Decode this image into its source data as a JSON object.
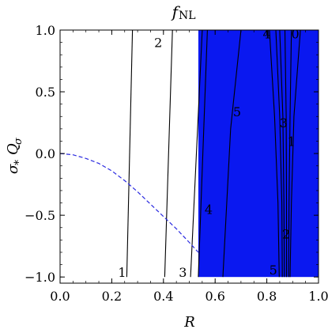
{
  "chart_data": {
    "type": "contour",
    "title": {
      "main": "f",
      "sub": "NL"
    },
    "xlabel": "R",
    "ylabel": {
      "sigma": "σ",
      "star": "*",
      "q": "Q",
      "qsub": "σ"
    },
    "xlim": [
      0,
      1
    ],
    "ylim": [
      -1.05,
      1.0
    ],
    "xticks": [
      0.0,
      0.2,
      0.4,
      0.6,
      0.8,
      1.0
    ],
    "xtick_labels": [
      "0.0",
      "0.2",
      "0.4",
      "0.6",
      "0.8",
      "1.0"
    ],
    "yticks": [
      -1.0,
      -0.5,
      0.0,
      0.5,
      1.0
    ],
    "ytick_labels": [
      "−1.0",
      "−0.5",
      "0.0",
      "0.5",
      "1.0"
    ],
    "shaded_region": {
      "x_from": 0.535,
      "x_to": 1.0,
      "y_from": -1.0,
      "y_to": 1.0,
      "color": "#0a18f0"
    },
    "dashed_curve": {
      "color": "#2a2ae0",
      "x": [
        0.0,
        0.05,
        0.1,
        0.15,
        0.2,
        0.25,
        0.3,
        0.35,
        0.4,
        0.45,
        0.5,
        0.535
      ],
      "y": [
        0.0,
        -0.01,
        -0.04,
        -0.08,
        -0.14,
        -0.22,
        -0.31,
        -0.41,
        -0.51,
        -0.61,
        -0.72,
        -0.8
      ]
    },
    "contours": [
      {
        "level": "1",
        "x": [
          0.258,
          0.28
        ],
        "y": [
          -1.0,
          1.0
        ]
      },
      {
        "level": "2",
        "x": [
          0.405,
          0.435
        ],
        "y": [
          -1.0,
          1.0
        ]
      },
      {
        "level": "3",
        "x": [
          0.505,
          0.55
        ],
        "y": [
          -1.0,
          1.0
        ]
      },
      {
        "level": "4",
        "x": [
          0.535,
          0.57
        ],
        "y": [
          -1.0,
          1.0
        ]
      },
      {
        "level": "5",
        "x": [
          0.63,
          0.645,
          0.66,
          0.7
        ],
        "y": [
          -1.0,
          -0.4,
          0.2,
          1.0
        ]
      },
      {
        "level": "5",
        "x": [
          0.848,
          0.843,
          0.83,
          0.81
        ],
        "y": [
          -1.0,
          -0.4,
          0.3,
          1.0
        ]
      },
      {
        "level": "4",
        "x": [
          0.86,
          0.858,
          0.85,
          0.835
        ],
        "y": [
          -1.0,
          -0.4,
          0.3,
          1.0
        ]
      },
      {
        "level": "3",
        "x": [
          0.868,
          0.866,
          0.862,
          0.85
        ],
        "y": [
          -1.0,
          -0.4,
          0.3,
          1.0
        ]
      },
      {
        "level": "2",
        "x": [
          0.876,
          0.876,
          0.875,
          0.87
        ],
        "y": [
          -1.0,
          -0.4,
          0.3,
          1.0
        ]
      },
      {
        "level": "1",
        "x": [
          0.884,
          0.886,
          0.89,
          0.895
        ],
        "y": [
          -1.0,
          -0.4,
          0.3,
          1.0
        ]
      },
      {
        "level": "0",
        "x": [
          0.89,
          0.895,
          0.905,
          0.93
        ],
        "y": [
          -1.0,
          -0.4,
          0.3,
          1.0
        ]
      }
    ],
    "contour_labels": [
      {
        "text": "1",
        "x": 0.24,
        "y": -0.96
      },
      {
        "text": "2",
        "x": 0.38,
        "y": 0.9
      },
      {
        "text": "3",
        "x": 0.475,
        "y": -0.96
      },
      {
        "text": "4",
        "x": 0.575,
        "y": -0.45
      },
      {
        "text": "5",
        "x": 0.685,
        "y": 0.34
      },
      {
        "text": "4",
        "x": 0.8,
        "y": 0.97
      },
      {
        "text": "0",
        "x": 0.91,
        "y": 0.97
      },
      {
        "text": "3",
        "x": 0.865,
        "y": 0.25
      },
      {
        "text": "1",
        "x": 0.895,
        "y": 0.1
      },
      {
        "text": "2",
        "x": 0.875,
        "y": -0.65
      },
      {
        "text": "5",
        "x": 0.825,
        "y": -0.94
      }
    ]
  }
}
